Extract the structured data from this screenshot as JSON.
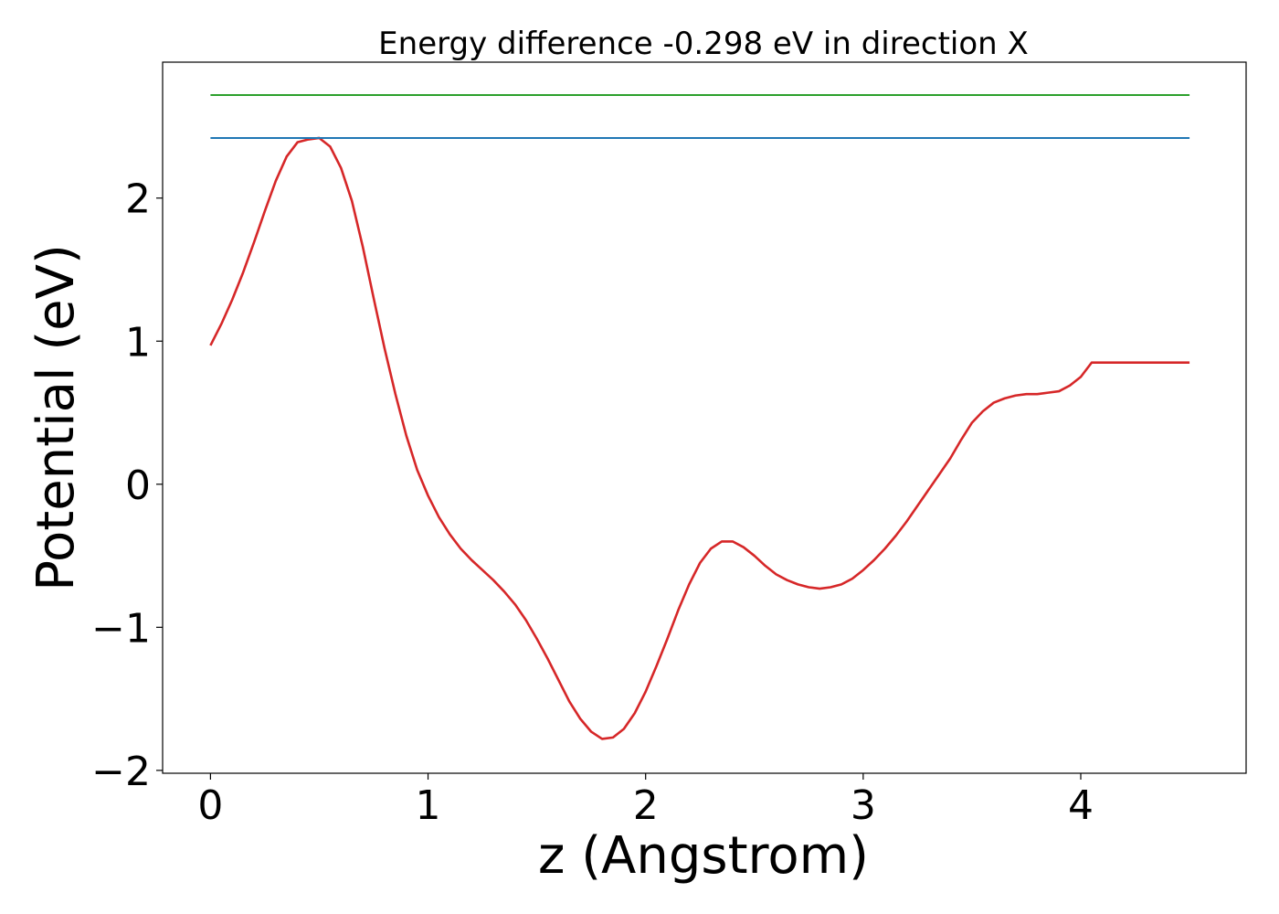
{
  "chart_data": {
    "type": "line",
    "title": "Energy difference -0.298 eV in direction X",
    "xlabel": "z (Angstrom)",
    "ylabel": "Potential (eV)",
    "xlim": [
      -0.22,
      4.76
    ],
    "ylim": [
      -2.02,
      2.95
    ],
    "xticks": [
      0,
      1,
      2,
      3,
      4
    ],
    "xtick_labels": [
      "0",
      "1",
      "2",
      "3",
      "4"
    ],
    "yticks": [
      -2,
      -1,
      0,
      1,
      2
    ],
    "ytick_labels": [
      "−2",
      "−1",
      "0",
      "1",
      "2"
    ],
    "grid": false,
    "legend": "none",
    "series": [
      {
        "color": "#d62728",
        "x": [
          0.0,
          0.05,
          0.1,
          0.15,
          0.2,
          0.25,
          0.3,
          0.35,
          0.4,
          0.45,
          0.5,
          0.55,
          0.6,
          0.65,
          0.7,
          0.75,
          0.8,
          0.85,
          0.9,
          0.95,
          1.0,
          1.05,
          1.1,
          1.15,
          1.2,
          1.25,
          1.3,
          1.35,
          1.4,
          1.45,
          1.5,
          1.55,
          1.6,
          1.65,
          1.7,
          1.75,
          1.8,
          1.85,
          1.9,
          1.95,
          2.0,
          2.05,
          2.1,
          2.15,
          2.2,
          2.25,
          2.3,
          2.35,
          2.4,
          2.45,
          2.5,
          2.55,
          2.6,
          2.65,
          2.7,
          2.75,
          2.8,
          2.85,
          2.9,
          2.95,
          3.0,
          3.05,
          3.1,
          3.15,
          3.2,
          3.25,
          3.3,
          3.35,
          3.4,
          3.45,
          3.5,
          3.55,
          3.6,
          3.65,
          3.7,
          3.75,
          3.8,
          3.85,
          3.9,
          3.95,
          4.0,
          4.05,
          4.1,
          4.15,
          4.2,
          4.25,
          4.3,
          4.35,
          4.4,
          4.45,
          4.5
        ],
        "y": [
          0.97,
          1.12,
          1.29,
          1.48,
          1.69,
          1.91,
          2.12,
          2.29,
          2.39,
          2.41,
          2.42,
          2.36,
          2.21,
          1.98,
          1.66,
          1.3,
          0.95,
          0.63,
          0.34,
          0.1,
          -0.08,
          -0.23,
          -0.35,
          -0.45,
          -0.53,
          -0.6,
          -0.67,
          -0.75,
          -0.84,
          -0.95,
          -1.08,
          -1.22,
          -1.37,
          -1.52,
          -1.64,
          -1.73,
          -1.78,
          -1.77,
          -1.71,
          -1.6,
          -1.45,
          -1.27,
          -1.08,
          -0.88,
          -0.7,
          -0.55,
          -0.45,
          -0.4,
          -0.4,
          -0.44,
          -0.5,
          -0.57,
          -0.63,
          -0.67,
          -0.7,
          -0.72,
          -0.73,
          -0.72,
          -0.7,
          -0.66,
          -0.6,
          -0.53,
          -0.45,
          -0.36,
          -0.26,
          -0.15,
          -0.04,
          0.07,
          0.18,
          0.31,
          0.43,
          0.51,
          0.57,
          0.6,
          0.62,
          0.63,
          0.63,
          0.64,
          0.65,
          0.69,
          0.75,
          0.85,
          0.85,
          0.85,
          0.85,
          0.85,
          0.85,
          0.85,
          0.85,
          0.85,
          0.85
        ]
      },
      {
        "color": "#1f77b4",
        "x": [
          0.0,
          4.5
        ],
        "y": [
          2.42,
          2.42
        ]
      },
      {
        "color": "#2ca02c",
        "x": [
          0.0,
          4.5
        ],
        "y": [
          2.72,
          2.72
        ]
      }
    ]
  }
}
